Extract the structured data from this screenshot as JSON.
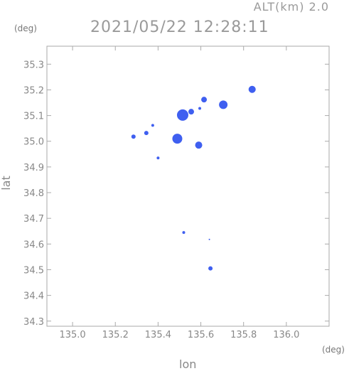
{
  "header": {
    "altitude_label": "ALT(km) 2.0",
    "timestamp": "2021/05/22 12:28:11"
  },
  "chart_data": {
    "type": "scatter",
    "title": "2021/05/22 12:28:11",
    "xlabel": "lon",
    "ylabel": "lat",
    "x_unit": "(deg)",
    "y_unit": "(deg)",
    "xlim": [
      134.88,
      136.2
    ],
    "ylim": [
      34.28,
      35.37
    ],
    "x_ticks": [
      "135.0",
      "135.2",
      "135.4",
      "135.6",
      "135.8",
      "136.0"
    ],
    "x_tick_values": [
      135.0,
      135.2,
      135.4,
      135.6,
      135.8,
      136.0
    ],
    "y_ticks": [
      "34.3",
      "34.4",
      "34.5",
      "34.6",
      "34.7",
      "34.8",
      "34.9",
      "35.0",
      "35.1",
      "35.2",
      "35.3"
    ],
    "y_tick_values": [
      34.3,
      34.4,
      34.5,
      34.6,
      34.7,
      34.8,
      34.9,
      35.0,
      35.1,
      35.2,
      35.3
    ],
    "grid": false,
    "series_color": "#3f5ff0",
    "points": [
      {
        "lon": 135.84,
        "lat": 35.202,
        "size": 5
      },
      {
        "lon": 135.705,
        "lat": 35.142,
        "size": 6
      },
      {
        "lon": 135.615,
        "lat": 35.162,
        "size": 4
      },
      {
        "lon": 135.595,
        "lat": 35.128,
        "size": 2
      },
      {
        "lon": 135.515,
        "lat": 35.102,
        "size": 8
      },
      {
        "lon": 135.555,
        "lat": 35.115,
        "size": 4
      },
      {
        "lon": 135.49,
        "lat": 35.01,
        "size": 7
      },
      {
        "lon": 135.59,
        "lat": 34.985,
        "size": 5
      },
      {
        "lon": 135.375,
        "lat": 35.062,
        "size": 2
      },
      {
        "lon": 135.345,
        "lat": 35.032,
        "size": 3
      },
      {
        "lon": 135.285,
        "lat": 35.018,
        "size": 3
      },
      {
        "lon": 135.4,
        "lat": 34.935,
        "size": 2
      },
      {
        "lon": 135.52,
        "lat": 34.645,
        "size": 2
      },
      {
        "lon": 135.64,
        "lat": 34.618,
        "size": 1
      },
      {
        "lon": 135.645,
        "lat": 34.505,
        "size": 3
      }
    ]
  }
}
